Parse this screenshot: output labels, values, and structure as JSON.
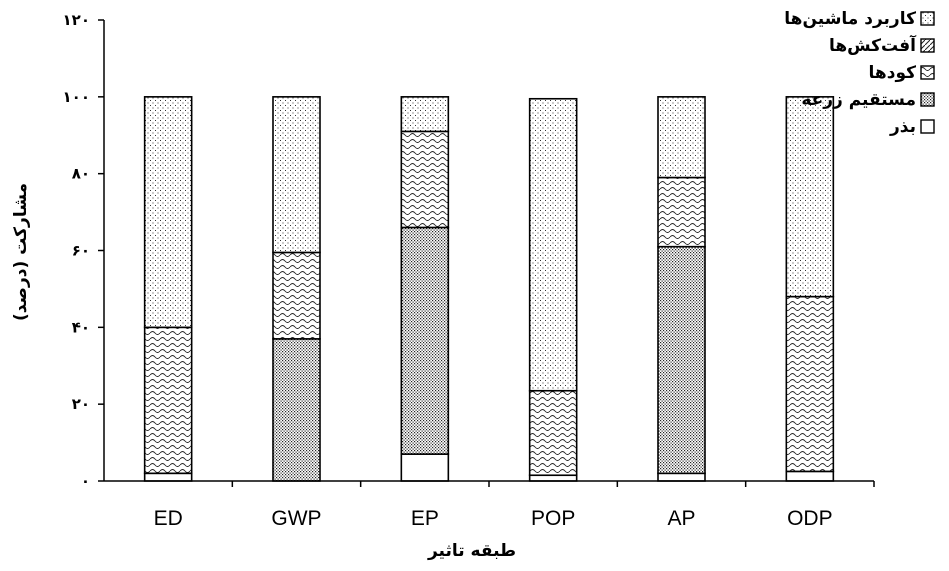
{
  "chart_data": {
    "type": "bar",
    "stacked": true,
    "title": "",
    "xlabel": "طبقه تاثیر",
    "ylabel": "مشارکت (درصد)",
    "ylim": [
      0,
      120
    ],
    "yticks": [
      0,
      20,
      40,
      60,
      80,
      100,
      120
    ],
    "ytick_labels": [
      "۰",
      "۲۰",
      "۴۰",
      "۶۰",
      "۸۰",
      "۱۰۰",
      "۱۲۰"
    ],
    "grid": false,
    "legend_position": "top-right",
    "categories": [
      "ED",
      "GWP",
      "EP",
      "POP",
      "AP",
      "ODP"
    ],
    "series": [
      {
        "name": "بذر",
        "pattern": "empty",
        "values": [
          2,
          0,
          7,
          1.5,
          2,
          2.5
        ]
      },
      {
        "name": "مستقیم زرعه",
        "pattern": "dense-dots",
        "values": [
          0,
          37,
          59,
          0,
          59,
          0
        ]
      },
      {
        "name": "کودها",
        "pattern": "waves",
        "values": [
          38,
          22.5,
          25,
          22,
          18,
          45.5
        ]
      },
      {
        "name": "آفت‌کش‌ها",
        "pattern": "diagonal",
        "values": [
          0,
          0,
          0,
          0,
          0,
          0
        ]
      },
      {
        "name": "کاربرد ماشین‌ها",
        "pattern": "light-dots",
        "values": [
          60,
          40.5,
          9,
          76,
          21,
          52
        ]
      }
    ]
  }
}
